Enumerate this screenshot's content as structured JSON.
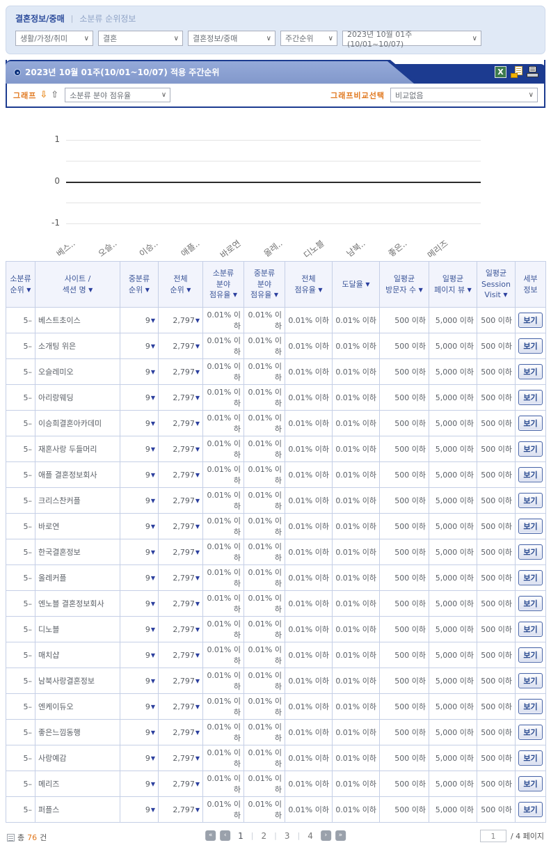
{
  "colors": {
    "navy": "#1c3b90",
    "tab_blue": "#8aa0d2",
    "accent_orange": "#e0771d",
    "header_text": "#3b5598"
  },
  "breadcrumb": {
    "current": "결혼정보/중매",
    "separator": "|",
    "sub": "소분류 순위정보"
  },
  "filters": {
    "category": "생활/가정/취미",
    "middle": "결혼",
    "small": "결혼정보/중매",
    "period_type": "주간순위",
    "period": "2023년 10월 01주(10/01~10/07)"
  },
  "panel": {
    "title": "2023년 10월 01주(10/01~10/07) 적용 주간순위",
    "icons": [
      "excel-icon",
      "email-icon",
      "print-icon"
    ],
    "graph_label": "그래프",
    "graph_metric": "소분류 분야 점유율",
    "compare_label": "그래프비교선택",
    "compare_value": "비교없음"
  },
  "chart_data": {
    "type": "bar",
    "title": "소분류 분야 점유율",
    "categories": [
      "베스..",
      "오슬..",
      "이승..",
      "애플..",
      "바로연",
      "올레..",
      "디노블",
      "남북..",
      "좋은..",
      "메리즈"
    ],
    "values": [
      0,
      0,
      0,
      0,
      0,
      0,
      0,
      0,
      0,
      0
    ],
    "yticks": [
      1,
      0,
      -1
    ],
    "gridline_values": [
      1,
      0.5,
      0,
      -0.5,
      -1
    ],
    "ylim": [
      -1,
      1
    ],
    "grid": true,
    "legend": "none"
  },
  "table": {
    "headers": [
      {
        "lines": [
          "소분류",
          "순위"
        ],
        "sort": true
      },
      {
        "lines": [
          "사이트 /",
          "섹션 명"
        ],
        "sort": true
      },
      {
        "lines": [
          "중분류",
          "순위"
        ],
        "sort": true
      },
      {
        "lines": [
          "전체",
          "순위"
        ],
        "sort": true
      },
      {
        "lines": [
          "소분류",
          "분야",
          "점유율"
        ],
        "sort": true
      },
      {
        "lines": [
          "중분류",
          "분야",
          "점유율"
        ],
        "sort": true
      },
      {
        "lines": [
          "전체",
          "점유율"
        ],
        "sort": true
      },
      {
        "lines": [
          "도달율"
        ],
        "sort": true
      },
      {
        "lines": [
          "일평균",
          "방문자 수"
        ],
        "sort": true
      },
      {
        "lines": [
          "일평균",
          "페이지 뷰"
        ],
        "sort": true
      },
      {
        "lines": [
          "일평균",
          "Session",
          "Visit"
        ],
        "sort": true
      },
      {
        "lines": [
          "세부",
          "정보"
        ],
        "sort": false
      }
    ],
    "detail_label": "보기",
    "rows": [
      {
        "rank": "5–",
        "site": "베스트초이스",
        "mid_rank": "9",
        "total_rank": "2,797",
        "sub_share": "0.01% 이하",
        "mid_share": "0.01% 이하",
        "total_share": "0.01% 이하",
        "reach": "0.01% 이하",
        "visitors": "500 이하",
        "pageviews": "5,000 이하",
        "sessions": "500 이하"
      },
      {
        "rank": "5–",
        "site": "소개팅 위은",
        "mid_rank": "9",
        "total_rank": "2,797",
        "sub_share": "0.01% 이하",
        "mid_share": "0.01% 이하",
        "total_share": "0.01% 이하",
        "reach": "0.01% 이하",
        "visitors": "500 이하",
        "pageviews": "5,000 이하",
        "sessions": "500 이하"
      },
      {
        "rank": "5–",
        "site": "오슬레미오",
        "mid_rank": "9",
        "total_rank": "2,797",
        "sub_share": "0.01% 이하",
        "mid_share": "0.01% 이하",
        "total_share": "0.01% 이하",
        "reach": "0.01% 이하",
        "visitors": "500 이하",
        "pageviews": "5,000 이하",
        "sessions": "500 이하"
      },
      {
        "rank": "5–",
        "site": "아리랑웨딩",
        "mid_rank": "9",
        "total_rank": "2,797",
        "sub_share": "0.01% 이하",
        "mid_share": "0.01% 이하",
        "total_share": "0.01% 이하",
        "reach": "0.01% 이하",
        "visitors": "500 이하",
        "pageviews": "5,000 이하",
        "sessions": "500 이하"
      },
      {
        "rank": "5–",
        "site": "이승희결혼아카데미",
        "mid_rank": "9",
        "total_rank": "2,797",
        "sub_share": "0.01% 이하",
        "mid_share": "0.01% 이하",
        "total_share": "0.01% 이하",
        "reach": "0.01% 이하",
        "visitors": "500 이하",
        "pageviews": "5,000 이하",
        "sessions": "500 이하"
      },
      {
        "rank": "5–",
        "site": "재혼사랑 두들머리",
        "mid_rank": "9",
        "total_rank": "2,797",
        "sub_share": "0.01% 이하",
        "mid_share": "0.01% 이하",
        "total_share": "0.01% 이하",
        "reach": "0.01% 이하",
        "visitors": "500 이하",
        "pageviews": "5,000 이하",
        "sessions": "500 이하"
      },
      {
        "rank": "5–",
        "site": "애플 결혼정보회사",
        "mid_rank": "9",
        "total_rank": "2,797",
        "sub_share": "0.01% 이하",
        "mid_share": "0.01% 이하",
        "total_share": "0.01% 이하",
        "reach": "0.01% 이하",
        "visitors": "500 이하",
        "pageviews": "5,000 이하",
        "sessions": "500 이하"
      },
      {
        "rank": "5–",
        "site": "크리스찬커플",
        "mid_rank": "9",
        "total_rank": "2,797",
        "sub_share": "0.01% 이하",
        "mid_share": "0.01% 이하",
        "total_share": "0.01% 이하",
        "reach": "0.01% 이하",
        "visitors": "500 이하",
        "pageviews": "5,000 이하",
        "sessions": "500 이하"
      },
      {
        "rank": "5–",
        "site": "바로연",
        "mid_rank": "9",
        "total_rank": "2,797",
        "sub_share": "0.01% 이하",
        "mid_share": "0.01% 이하",
        "total_share": "0.01% 이하",
        "reach": "0.01% 이하",
        "visitors": "500 이하",
        "pageviews": "5,000 이하",
        "sessions": "500 이하"
      },
      {
        "rank": "5–",
        "site": "한국결혼정보",
        "mid_rank": "9",
        "total_rank": "2,797",
        "sub_share": "0.01% 이하",
        "mid_share": "0.01% 이하",
        "total_share": "0.01% 이하",
        "reach": "0.01% 이하",
        "visitors": "500 이하",
        "pageviews": "5,000 이하",
        "sessions": "500 이하"
      },
      {
        "rank": "5–",
        "site": "올레커플",
        "mid_rank": "9",
        "total_rank": "2,797",
        "sub_share": "0.01% 이하",
        "mid_share": "0.01% 이하",
        "total_share": "0.01% 이하",
        "reach": "0.01% 이하",
        "visitors": "500 이하",
        "pageviews": "5,000 이하",
        "sessions": "500 이하"
      },
      {
        "rank": "5–",
        "site": "엔노블 결혼정보회사",
        "mid_rank": "9",
        "total_rank": "2,797",
        "sub_share": "0.01% 이하",
        "mid_share": "0.01% 이하",
        "total_share": "0.01% 이하",
        "reach": "0.01% 이하",
        "visitors": "500 이하",
        "pageviews": "5,000 이하",
        "sessions": "500 이하"
      },
      {
        "rank": "5–",
        "site": "디노블",
        "mid_rank": "9",
        "total_rank": "2,797",
        "sub_share": "0.01% 이하",
        "mid_share": "0.01% 이하",
        "total_share": "0.01% 이하",
        "reach": "0.01% 이하",
        "visitors": "500 이하",
        "pageviews": "5,000 이하",
        "sessions": "500 이하"
      },
      {
        "rank": "5–",
        "site": "매치샵",
        "mid_rank": "9",
        "total_rank": "2,797",
        "sub_share": "0.01% 이하",
        "mid_share": "0.01% 이하",
        "total_share": "0.01% 이하",
        "reach": "0.01% 이하",
        "visitors": "500 이하",
        "pageviews": "5,000 이하",
        "sessions": "500 이하"
      },
      {
        "rank": "5–",
        "site": "남북사랑결혼정보",
        "mid_rank": "9",
        "total_rank": "2,797",
        "sub_share": "0.01% 이하",
        "mid_share": "0.01% 이하",
        "total_share": "0.01% 이하",
        "reach": "0.01% 이하",
        "visitors": "500 이하",
        "pageviews": "5,000 이하",
        "sessions": "500 이하"
      },
      {
        "rank": "5–",
        "site": "엔케이듀오",
        "mid_rank": "9",
        "total_rank": "2,797",
        "sub_share": "0.01% 이하",
        "mid_share": "0.01% 이하",
        "total_share": "0.01% 이하",
        "reach": "0.01% 이하",
        "visitors": "500 이하",
        "pageviews": "5,000 이하",
        "sessions": "500 이하"
      },
      {
        "rank": "5–",
        "site": "좋은느낌동행",
        "mid_rank": "9",
        "total_rank": "2,797",
        "sub_share": "0.01% 이하",
        "mid_share": "0.01% 이하",
        "total_share": "0.01% 이하",
        "reach": "0.01% 이하",
        "visitors": "500 이하",
        "pageviews": "5,000 이하",
        "sessions": "500 이하"
      },
      {
        "rank": "5–",
        "site": "사랑예감",
        "mid_rank": "9",
        "total_rank": "2,797",
        "sub_share": "0.01% 이하",
        "mid_share": "0.01% 이하",
        "total_share": "0.01% 이하",
        "reach": "0.01% 이하",
        "visitors": "500 이하",
        "pageviews": "5,000 이하",
        "sessions": "500 이하"
      },
      {
        "rank": "5–",
        "site": "메리즈",
        "mid_rank": "9",
        "total_rank": "2,797",
        "sub_share": "0.01% 이하",
        "mid_share": "0.01% 이하",
        "total_share": "0.01% 이하",
        "reach": "0.01% 이하",
        "visitors": "500 이하",
        "pageviews": "5,000 이하",
        "sessions": "500 이하"
      },
      {
        "rank": "5–",
        "site": "퍼플스",
        "mid_rank": "9",
        "total_rank": "2,797",
        "sub_share": "0.01% 이하",
        "mid_share": "0.01% 이하",
        "total_share": "0.01% 이하",
        "reach": "0.01% 이하",
        "visitors": "500 이하",
        "pageviews": "5,000 이하",
        "sessions": "500 이하"
      }
    ]
  },
  "footer": {
    "total_label": "총",
    "total_count": "76",
    "unit_label": "건",
    "pages": [
      "1",
      "2",
      "3",
      "4"
    ],
    "current_page": "1",
    "page_input_value": "1",
    "page_suffix": "/ 4 페이지"
  }
}
